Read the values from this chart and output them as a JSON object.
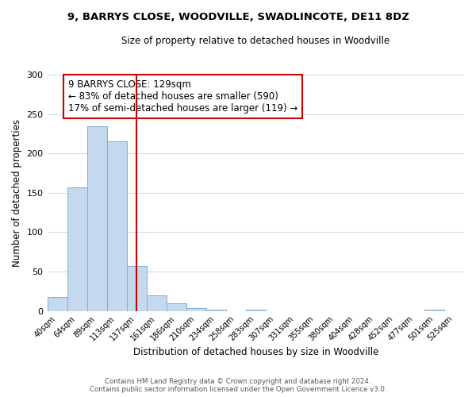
{
  "title": "9, BARRYS CLOSE, WOODVILLE, SWADLINCOTE, DE11 8DZ",
  "subtitle": "Size of property relative to detached houses in Woodville",
  "xlabel": "Distribution of detached houses by size in Woodville",
  "ylabel": "Number of detached properties",
  "bin_labels": [
    "40sqm",
    "64sqm",
    "89sqm",
    "113sqm",
    "137sqm",
    "161sqm",
    "186sqm",
    "210sqm",
    "234sqm",
    "258sqm",
    "283sqm",
    "307sqm",
    "331sqm",
    "355sqm",
    "380sqm",
    "404sqm",
    "428sqm",
    "452sqm",
    "477sqm",
    "501sqm",
    "525sqm"
  ],
  "bar_heights": [
    18,
    157,
    234,
    215,
    57,
    20,
    10,
    4,
    2,
    0,
    2,
    0,
    0,
    0,
    0,
    0,
    0,
    0,
    0,
    2,
    0
  ],
  "bar_color": "#c5d9ee",
  "bar_edge_color": "#7bafd4",
  "reference_line_bin_index": 4,
  "reference_line_color": "#cc0000",
  "annotation_title": "9 BARRYS CLOSE: 129sqm",
  "annotation_line1": "← 83% of detached houses are smaller (590)",
  "annotation_line2": "17% of semi-detached houses are larger (119) →",
  "annotation_box_color": "#cc0000",
  "ylim": [
    0,
    300
  ],
  "yticks": [
    0,
    50,
    100,
    150,
    200,
    250,
    300
  ],
  "footer1": "Contains HM Land Registry data © Crown copyright and database right 2024.",
  "footer2": "Contains public sector information licensed under the Open Government Licence v3.0."
}
